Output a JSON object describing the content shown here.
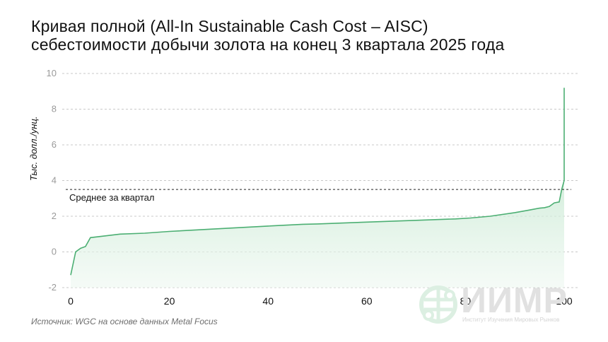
{
  "title": {
    "line1": "Кривая полной (All-In Sustainable Cash Cost – AISC)",
    "line2": "себестоимости добычи золота на конец 3 квартала 2025 года"
  },
  "source": "Источник: WGC на основе данных Metal Focus",
  "logo": {
    "name": "ИИМР",
    "subtitle": "Институт Изучения Мировых Рынков",
    "icon": "globe-network-icon"
  },
  "colors": {
    "line": "#4caf73",
    "fill_top": "#a9dcb9",
    "fill_bottom": "#eef8f1",
    "grid": "#c8c8c8",
    "average_line": "#222222"
  },
  "chart_data": {
    "type": "area",
    "title": "Кривая полной (All-In Sustainable Cash Cost – AISC) себестоимости добычи золота на конец 3 квартала 2025 года",
    "xlabel": "",
    "ylabel": "Тыс. долл./унц.",
    "xlim": [
      0,
      100
    ],
    "ylim": [
      -2,
      10
    ],
    "x_ticks": [
      "0",
      "20",
      "40",
      "60",
      "80",
      "100"
    ],
    "y_ticks": [
      "-2",
      "0",
      "2",
      "4",
      "6",
      "8",
      "10"
    ],
    "grid": "horizontal dashed",
    "legend": null,
    "annotations": [
      {
        "type": "hline",
        "y": 3.5,
        "label": "Среднее за квартал",
        "style": "dashed"
      }
    ],
    "series": [
      {
        "name": "AISC",
        "x": [
          0,
          1,
          2,
          3,
          4,
          7,
          10,
          15,
          20,
          30,
          40,
          47,
          50,
          60,
          70,
          78,
          81,
          85,
          90,
          93,
          95,
          96,
          97,
          98,
          99,
          99.5,
          100,
          100
        ],
        "y": [
          -1.3,
          0.0,
          0.2,
          0.3,
          0.8,
          0.9,
          1.0,
          1.05,
          1.15,
          1.3,
          1.45,
          1.55,
          1.57,
          1.67,
          1.77,
          1.85,
          1.9,
          2.0,
          2.2,
          2.35,
          2.45,
          2.48,
          2.55,
          2.75,
          2.8,
          3.5,
          4.0,
          9.2
        ]
      }
    ]
  }
}
